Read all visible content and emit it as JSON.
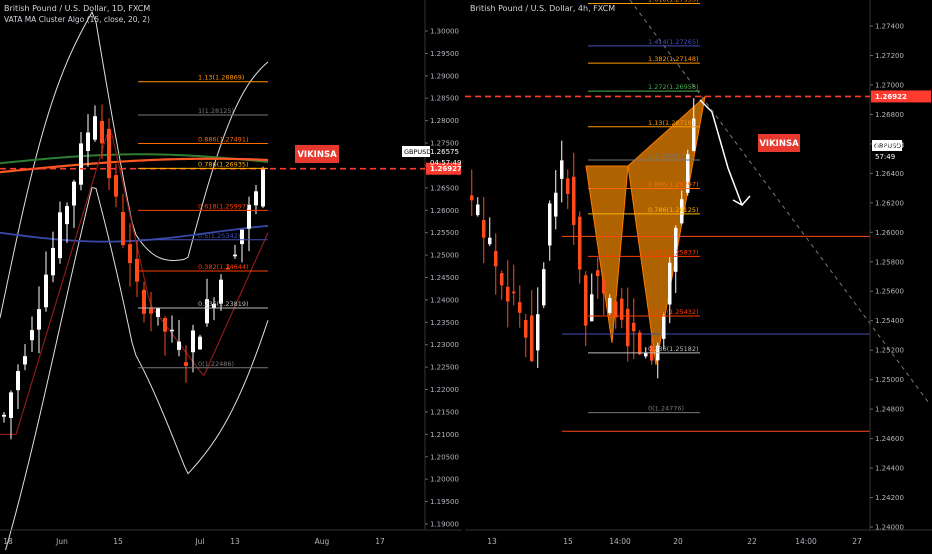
{
  "chart_data": [
    {
      "type": "candlestick",
      "title": "British Pound / U.S. Dollar, 1D, FXCM",
      "indicator": "VATA MA Cluster Algo (15, close, 20, 2)",
      "symbol": "GBPUSD",
      "price": "1.26575",
      "countdown": "04:57:49",
      "ylim": [
        1.19,
        1.31
      ],
      "y_ticks": [
        "1.19000",
        "1.19500",
        "1.20000",
        "1.20500",
        "1.21000",
        "1.21500",
        "1.22000",
        "1.22500",
        "1.23000",
        "1.23500",
        "1.24000",
        "1.24500",
        "1.25000",
        "1.25500",
        "1.26000",
        "1.26500",
        "1.27000",
        "1.27500",
        "1.28000",
        "1.28500",
        "1.29000",
        "1.29500",
        "1.30000"
      ],
      "x_labels": [
        "18",
        "Jun",
        "15",
        "Jul",
        "13",
        "Aug",
        "17"
      ],
      "resistance": {
        "label": "1.26927",
        "value": 1.26927,
        "color": "#ff3b30"
      },
      "watermark": "VIKINSA",
      "fib_levels": [
        {
          "label": "1.13(1.28869)",
          "value": 1.28869,
          "color": "#ff9800"
        },
        {
          "label": "1(1.28125)",
          "value": 1.28125,
          "color": "#787878"
        },
        {
          "label": "0.886(1.27491)",
          "value": 1.27491,
          "color": "#ff6b00"
        },
        {
          "label": "0.786(1.26935)",
          "value": 1.26935,
          "color": "#ffb300"
        },
        {
          "label": "0.618(1.25997)",
          "value": 1.25997,
          "color": "#ff3d00"
        },
        {
          "label": "0.5(1.25342)",
          "value": 1.25342,
          "color": "#3f51b5"
        },
        {
          "label": "0.382(1.24644)",
          "value": 1.24644,
          "color": "#ff3d00"
        },
        {
          "label": "0.236(1.23819)",
          "value": 1.23819,
          "color": "#bdbdbd"
        },
        {
          "label": "0(1.22486)",
          "value": 1.22486,
          "color": "#787878"
        }
      ]
    },
    {
      "type": "candlestick",
      "title": "British Pound / U.S. Dollar, 4h, FXCM",
      "symbol": "GBPUSD",
      "price": "1.26575",
      "countdown": "57:49",
      "ylim": [
        1.239,
        1.2755
      ],
      "y_ticks": [
        "1.24000",
        "1.24200",
        "1.24400",
        "1.24600",
        "1.24800",
        "1.25000",
        "1.25200",
        "1.25400",
        "1.25600",
        "1.25800",
        "1.26000",
        "1.26200",
        "1.26400",
        "1.26600",
        "1.26800",
        "1.27000",
        "1.27200",
        "1.27400"
      ],
      "x_labels": [
        "13",
        "15",
        "14:00",
        "20",
        "22",
        "14:00",
        "27"
      ],
      "resistance": {
        "label": "1.26922",
        "value": 1.26922,
        "color": "#ff3b30"
      },
      "watermark": "VIKINSA",
      "fib_levels": [
        {
          "label": "1.618(1.27553)",
          "value": 1.27553,
          "color": "#ff9800"
        },
        {
          "label": "1.414(1.27265)",
          "value": 1.27265,
          "color": "#3f51b5"
        },
        {
          "label": "1.382(1.27148)",
          "value": 1.27148,
          "color": "#ff9800"
        },
        {
          "label": "1.272(1.26958)",
          "value": 1.26958,
          "color": "#4caf50"
        },
        {
          "label": "1.13(1.26716)",
          "value": 1.26716,
          "color": "#ff9800"
        },
        {
          "label": "1(1.26491)",
          "value": 1.26491,
          "color": "#787878"
        },
        {
          "label": "0.886(1.26297)",
          "value": 1.26297,
          "color": "#ff6b00"
        },
        {
          "label": "0.786(1.26125)",
          "value": 1.26125,
          "color": "#ffb300"
        },
        {
          "label": "0.618(1.25837)",
          "value": 1.25837,
          "color": "#ff3d00"
        },
        {
          "label": "0.382(1.25432)",
          "value": 1.25432,
          "color": "#ff3d00"
        },
        {
          "label": "0.236(1.25182)",
          "value": 1.25182,
          "color": "#bdbdbd"
        },
        {
          "label": "0(1.24776)",
          "value": 1.24776,
          "color": "#787878"
        }
      ]
    }
  ]
}
